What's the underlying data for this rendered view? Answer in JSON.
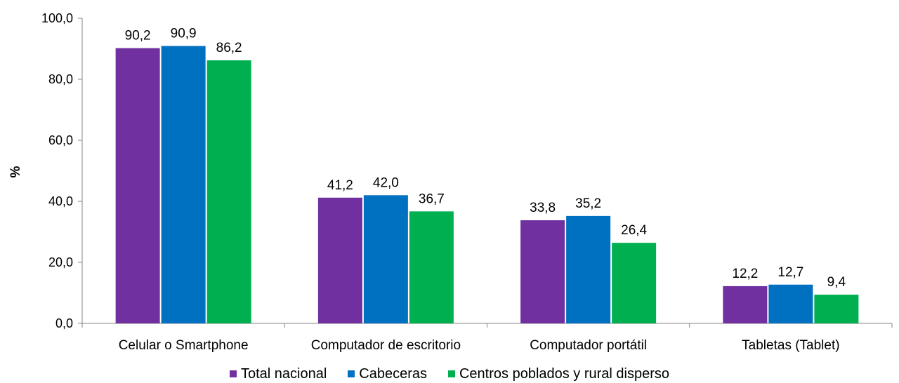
{
  "chart_data": {
    "type": "bar",
    "title": "",
    "xlabel": "",
    "ylabel": "%",
    "ylim": [
      0,
      100
    ],
    "yticks": [
      "0,0",
      "20,0",
      "40,0",
      "60,0",
      "80,0",
      "100,0"
    ],
    "ytick_values": [
      0,
      20,
      40,
      60,
      80,
      100
    ],
    "grid": false,
    "legend_position": "bottom",
    "categories": [
      "Celular o Smartphone",
      "Computador de escritorio",
      "Computador portátil",
      "Tabletas (Tablet)"
    ],
    "series": [
      {
        "name": "Total nacional",
        "color": "#7030A0",
        "values": [
          90.2,
          41.2,
          33.8,
          12.2
        ],
        "labels": [
          "90,2",
          "41,2",
          "33,8",
          "12,2"
        ]
      },
      {
        "name": "Cabeceras",
        "color": "#0070C0",
        "values": [
          90.9,
          42.0,
          35.2,
          12.7
        ],
        "labels": [
          "90,9",
          "42,0",
          "35,2",
          "12,7"
        ]
      },
      {
        "name": "Centros poblados y rural disperso",
        "color": "#00B050",
        "values": [
          86.2,
          36.7,
          26.4,
          9.4
        ],
        "labels": [
          "86,2",
          "36,7",
          "26,4",
          "9,4"
        ]
      }
    ]
  }
}
